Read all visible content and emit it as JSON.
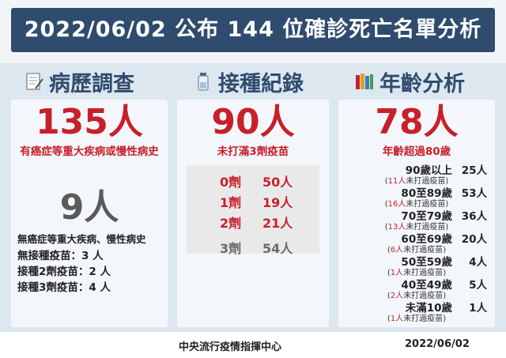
{
  "title": "2022/06/02 公布 144 位確診死亡名單分析",
  "columns": {
    "history": {
      "heading": "病歷調查",
      "icon": "notepad-icon",
      "main_count": "135人",
      "main_desc": "有癌症等重大疾病或慢性病史",
      "second_count": "9人",
      "second_desc": "無癌症等重大疾病、慢性病史",
      "lines": [
        "無接種疫苗：3 人",
        "接種2劑疫苗：2 人",
        "接種3劑疫苗：4 人"
      ]
    },
    "vaccine": {
      "heading": "接種紀錄",
      "icon": "vaccine-vial-icon",
      "main_count": "90人",
      "main_desc": "未打滿3劑疫苗",
      "doses": [
        {
          "label": "0劑",
          "value": "50人",
          "color": "#c8202a"
        },
        {
          "label": "1劑",
          "value": "19人",
          "color": "#c8202a"
        },
        {
          "label": "2劑",
          "value": "21人",
          "color": "#c8202a"
        },
        {
          "label": "3劑",
          "value": "54人",
          "color": "#6a6a6a"
        }
      ]
    },
    "age": {
      "heading": "年齡分析",
      "icon": "books-icon",
      "main_count": "78人",
      "main_desc": "年齡超過80歲",
      "groups": [
        {
          "label": "90歲以上",
          "value": "25人",
          "note_num": "11人",
          "note_text": "未打過疫苗"
        },
        {
          "label": "80至89歲",
          "value": "53人",
          "note_num": "16人",
          "note_text": "未打過疫苗"
        },
        {
          "label": "70至79歲",
          "value": "36人",
          "note_num": "13人",
          "note_text": "未打過疫苗"
        },
        {
          "label": "60至69歲",
          "value": "20人",
          "note_num": "6人",
          "note_text": "未打過疫苗"
        },
        {
          "label": "50至59歲",
          "value": "4人",
          "note_num": "1人",
          "note_text": "未打過疫苗"
        },
        {
          "label": "40至49歲",
          "value": "5人",
          "note_num": "2人",
          "note_text": "未打過疫苗"
        },
        {
          "label": "未滿10歲",
          "value": "1人",
          "note_num": "1人",
          "note_text": "未打過疫苗"
        }
      ]
    }
  },
  "footer": {
    "org": "中央流行疫情指揮中心",
    "date": "2022/06/02"
  },
  "colors": {
    "header_bg": "#2f4c6e",
    "accent_red": "#c8202a",
    "panel_bg": "#f3f7fb",
    "page_bg": "#dde7f0"
  }
}
